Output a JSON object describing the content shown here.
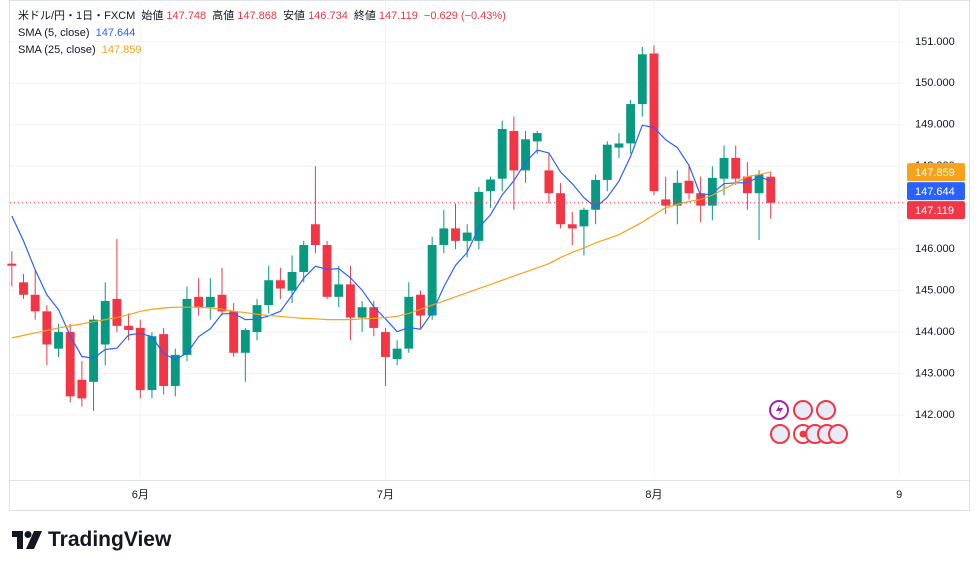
{
  "chart_data": {
    "type": "candlestick",
    "title": "米ドル/円・1日・FXCM",
    "ohlc_labels": [
      "始値",
      "高値",
      "安値",
      "終値"
    ],
    "change": "−0.629 (−0.43%)",
    "brand": "TradingView",
    "up_color": "#089981",
    "down_color": "#f23645",
    "grid": true,
    "last_price_line": true,
    "ylim": [
      140.48,
      152.01
    ],
    "yticks": [
      {
        "value": 142,
        "label": "142.000"
      },
      {
        "value": 143,
        "label": "143.000"
      },
      {
        "value": 144,
        "label": "144.000"
      },
      {
        "value": 145,
        "label": "145.000"
      },
      {
        "value": 146,
        "label": "146.000"
      },
      {
        "value": 147,
        "label": "147.000"
      },
      {
        "value": 148,
        "label": "148.000"
      },
      {
        "value": 149,
        "label": "149.000"
      },
      {
        "value": 150,
        "label": "150.000"
      },
      {
        "value": 151,
        "label": "151.000"
      }
    ],
    "categories": [
      null,
      null,
      null,
      null,
      null,
      null,
      null,
      null,
      null,
      null,
      null,
      "6月",
      null,
      null,
      null,
      null,
      null,
      null,
      null,
      null,
      null,
      null,
      null,
      null,
      null,
      null,
      null,
      null,
      null,
      null,
      null,
      null,
      "7月",
      null,
      null,
      null,
      null,
      null,
      null,
      null,
      null,
      null,
      null,
      null,
      null,
      null,
      null,
      null,
      null,
      null,
      null,
      null,
      null,
      null,
      null,
      "8月",
      null,
      null,
      null,
      null,
      null,
      null,
      null,
      null,
      null,
      null,
      null,
      null,
      null,
      null,
      null,
      null,
      null,
      null,
      null,
      null,
      "9"
    ],
    "open": [
      145.65,
      145.2,
      144.9,
      144.5,
      143.6,
      144.0,
      142.85,
      142.8,
      143.7,
      144.8,
      144.15,
      144.1,
      142.6,
      143.95,
      142.7,
      143.45,
      144.85,
      144.6,
      144.9,
      144.5,
      143.5,
      144.0,
      144.65,
      145.25,
      145.0,
      145.45,
      146.6,
      146.1,
      144.85,
      145.15,
      144.35,
      144.6,
      144.0,
      143.35,
      143.6,
      144.9,
      144.4,
      146.1,
      146.5,
      146.2,
      146.2,
      147.4,
      147.7,
      148.85,
      147.9,
      148.6,
      147.9,
      147.35,
      146.6,
      146.55,
      146.95,
      147.67,
      148.45,
      148.55,
      149.5,
      150.72,
      147.2,
      147.05,
      147.65,
      147.35,
      147.05,
      147.7,
      148.2,
      147.75,
      147.35,
      147.748,
      null,
      null,
      null,
      null,
      null,
      null,
      null,
      null,
      null,
      null,
      null
    ],
    "high": [
      145.95,
      145.4,
      145.5,
      144.65,
      144.2,
      144.2,
      143.3,
      144.4,
      145.2,
      146.25,
      144.45,
      144.3,
      144.0,
      144.1,
      143.6,
      145.1,
      145.3,
      145.3,
      145.55,
      144.7,
      144.1,
      144.8,
      145.6,
      145.55,
      145.85,
      146.2,
      148.0,
      146.2,
      145.6,
      145.6,
      144.75,
      144.75,
      144.1,
      143.8,
      145.2,
      145.0,
      146.3,
      146.95,
      147.1,
      146.6,
      147.5,
      147.75,
      149.1,
      149.2,
      148.85,
      148.85,
      148.3,
      147.6,
      146.9,
      147.0,
      147.8,
      148.6,
      148.8,
      149.6,
      150.88,
      150.92,
      147.75,
      147.9,
      148.05,
      147.75,
      148.0,
      148.5,
      148.5,
      148.1,
      147.9,
      147.868,
      null,
      null,
      null,
      null,
      null,
      null,
      null,
      null,
      null,
      null,
      null
    ],
    "low": [
      145.1,
      144.8,
      144.3,
      143.2,
      143.4,
      142.3,
      142.2,
      142.1,
      143.2,
      144.0,
      143.8,
      142.4,
      142.4,
      142.5,
      142.45,
      143.3,
      144.4,
      144.3,
      144.4,
      143.4,
      142.8,
      143.8,
      144.45,
      144.8,
      144.7,
      145.2,
      145.9,
      144.8,
      144.6,
      143.8,
      144.0,
      143.9,
      142.7,
      143.2,
      143.5,
      144.1,
      144.3,
      145.9,
      146.0,
      145.8,
      146.0,
      147.0,
      147.4,
      146.95,
      147.6,
      148.3,
      147.1,
      146.5,
      146.1,
      145.85,
      146.6,
      147.4,
      148.2,
      148.3,
      149.2,
      147.3,
      146.85,
      146.6,
      147.2,
      146.65,
      146.7,
      147.3,
      147.55,
      146.95,
      146.22,
      146.734,
      null,
      null,
      null,
      null,
      null,
      null,
      null,
      null,
      null,
      null,
      null
    ],
    "close": [
      145.6,
      144.9,
      144.5,
      143.7,
      144.0,
      142.45,
      142.4,
      144.3,
      144.75,
      144.15,
      144.05,
      142.6,
      143.9,
      142.7,
      143.45,
      144.8,
      144.6,
      144.85,
      144.5,
      143.5,
      144.05,
      144.65,
      145.25,
      145.05,
      145.45,
      146.1,
      146.1,
      144.85,
      145.15,
      144.35,
      144.6,
      144.1,
      143.4,
      143.6,
      144.85,
      144.4,
      146.1,
      146.5,
      146.2,
      146.4,
      147.38,
      147.68,
      148.9,
      147.9,
      148.65,
      148.8,
      147.35,
      146.6,
      146.5,
      146.95,
      147.67,
      148.52,
      148.55,
      149.5,
      150.7,
      147.4,
      147.05,
      147.6,
      147.35,
      147.05,
      147.72,
      148.2,
      147.7,
      147.35,
      147.8,
      147.119,
      null,
      null,
      null,
      null,
      null,
      null,
      null,
      null,
      null,
      null,
      null
    ],
    "series": [
      {
        "name": "SMA (5, close)",
        "color": "#2962ff",
        "values": [
          146.8,
          146.2,
          145.5,
          144.9,
          144.54,
          143.91,
          143.41,
          143.37,
          143.58,
          143.61,
          143.93,
          143.97,
          143.89,
          143.48,
          143.34,
          143.49,
          143.89,
          144.08,
          144.44,
          144.45,
          144.3,
          144.31,
          144.39,
          144.5,
          144.89,
          145.3,
          145.59,
          145.51,
          145.53,
          145.31,
          145.01,
          144.61,
          144.32,
          144.01,
          144.11,
          144.07,
          144.47,
          145.09,
          145.61,
          145.92,
          146.52,
          146.83,
          147.31,
          147.65,
          148.1,
          148.39,
          148.32,
          147.86,
          147.58,
          147.24,
          147.01,
          147.25,
          147.64,
          148.24,
          148.99,
          148.93,
          148.64,
          148.45,
          148.02,
          147.29,
          147.35,
          147.58,
          147.6,
          147.6,
          147.75,
          147.644,
          null,
          null,
          null,
          null,
          null,
          null,
          null,
          null,
          null,
          null,
          null
        ]
      },
      {
        "name": "SMA (25, close)",
        "color": "#f7a21b",
        "values": [
          143.86,
          143.92,
          143.98,
          144.04,
          144.1,
          144.15,
          144.2,
          144.25,
          144.3,
          144.35,
          144.42,
          144.5,
          144.55,
          144.58,
          144.6,
          144.6,
          144.6,
          144.58,
          144.55,
          144.5,
          144.47,
          144.43,
          144.4,
          144.38,
          144.35,
          144.33,
          144.32,
          144.3,
          144.3,
          144.3,
          144.32,
          144.33,
          144.35,
          144.38,
          144.45,
          144.55,
          144.65,
          144.75,
          144.85,
          144.95,
          145.05,
          145.15,
          145.25,
          145.35,
          145.45,
          145.55,
          145.65,
          145.8,
          145.92,
          146.03,
          146.15,
          146.25,
          146.35,
          146.5,
          146.65,
          146.83,
          147.0,
          147.08,
          147.15,
          147.2,
          147.3,
          147.45,
          147.6,
          147.75,
          147.8,
          147.859,
          null,
          null,
          null,
          null,
          null,
          null,
          null,
          null,
          null,
          null,
          null
        ]
      }
    ]
  }
}
